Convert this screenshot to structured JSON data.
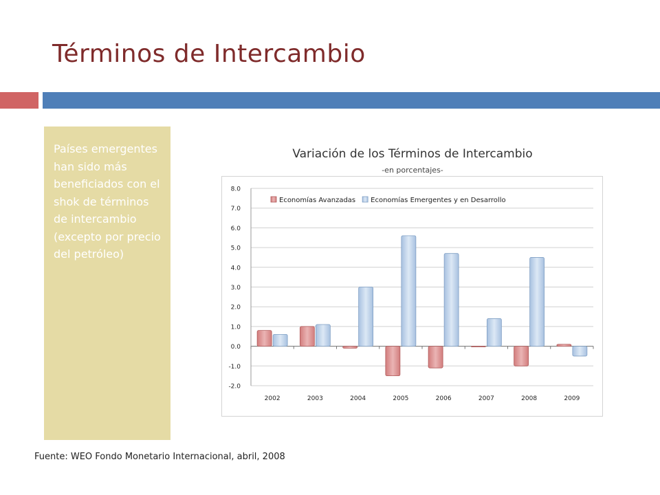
{
  "slide": {
    "title": "Términos de Intercambio",
    "accent_colors": {
      "title": "#7f2b2b",
      "rule_left": "#d06464",
      "rule_right": "#4f7fb8",
      "sidebar": "#e5dba5"
    }
  },
  "sidebar": {
    "text": "Países emergentes han sido más beneficiados con el shok de términos de intercambio (excepto por precio del petróleo)"
  },
  "source": "Fuente: WEO Fondo Monetario Internacional, abril, 2008",
  "chart_data": {
    "type": "bar",
    "title": "Variación de los Términos de Intercambio",
    "subtitle": "-en porcentajes-",
    "categories": [
      "2002",
      "2003",
      "2004",
      "2005",
      "2006",
      "2007",
      "2008",
      "2009"
    ],
    "series": [
      {
        "name": "Economías Avanzadas",
        "color": "#d98b8b",
        "values": [
          0.8,
          1.0,
          -0.1,
          -1.5,
          -1.1,
          0.0,
          -1.0,
          0.1
        ]
      },
      {
        "name": "Economías Emergentes y en Desarrollo",
        "color": "#b8cfe8",
        "values": [
          0.6,
          1.1,
          3.0,
          5.6,
          4.7,
          1.4,
          4.5,
          -0.5
        ]
      }
    ],
    "ylim": [
      -2.0,
      8.0
    ],
    "yticks": [
      "8.0",
      "7.0",
      "6.0",
      "5.0",
      "4.0",
      "3.0",
      "2.0",
      "1.0",
      "0.0",
      "-1.0",
      "-2.0"
    ],
    "grid": true,
    "legend_position": "top"
  }
}
